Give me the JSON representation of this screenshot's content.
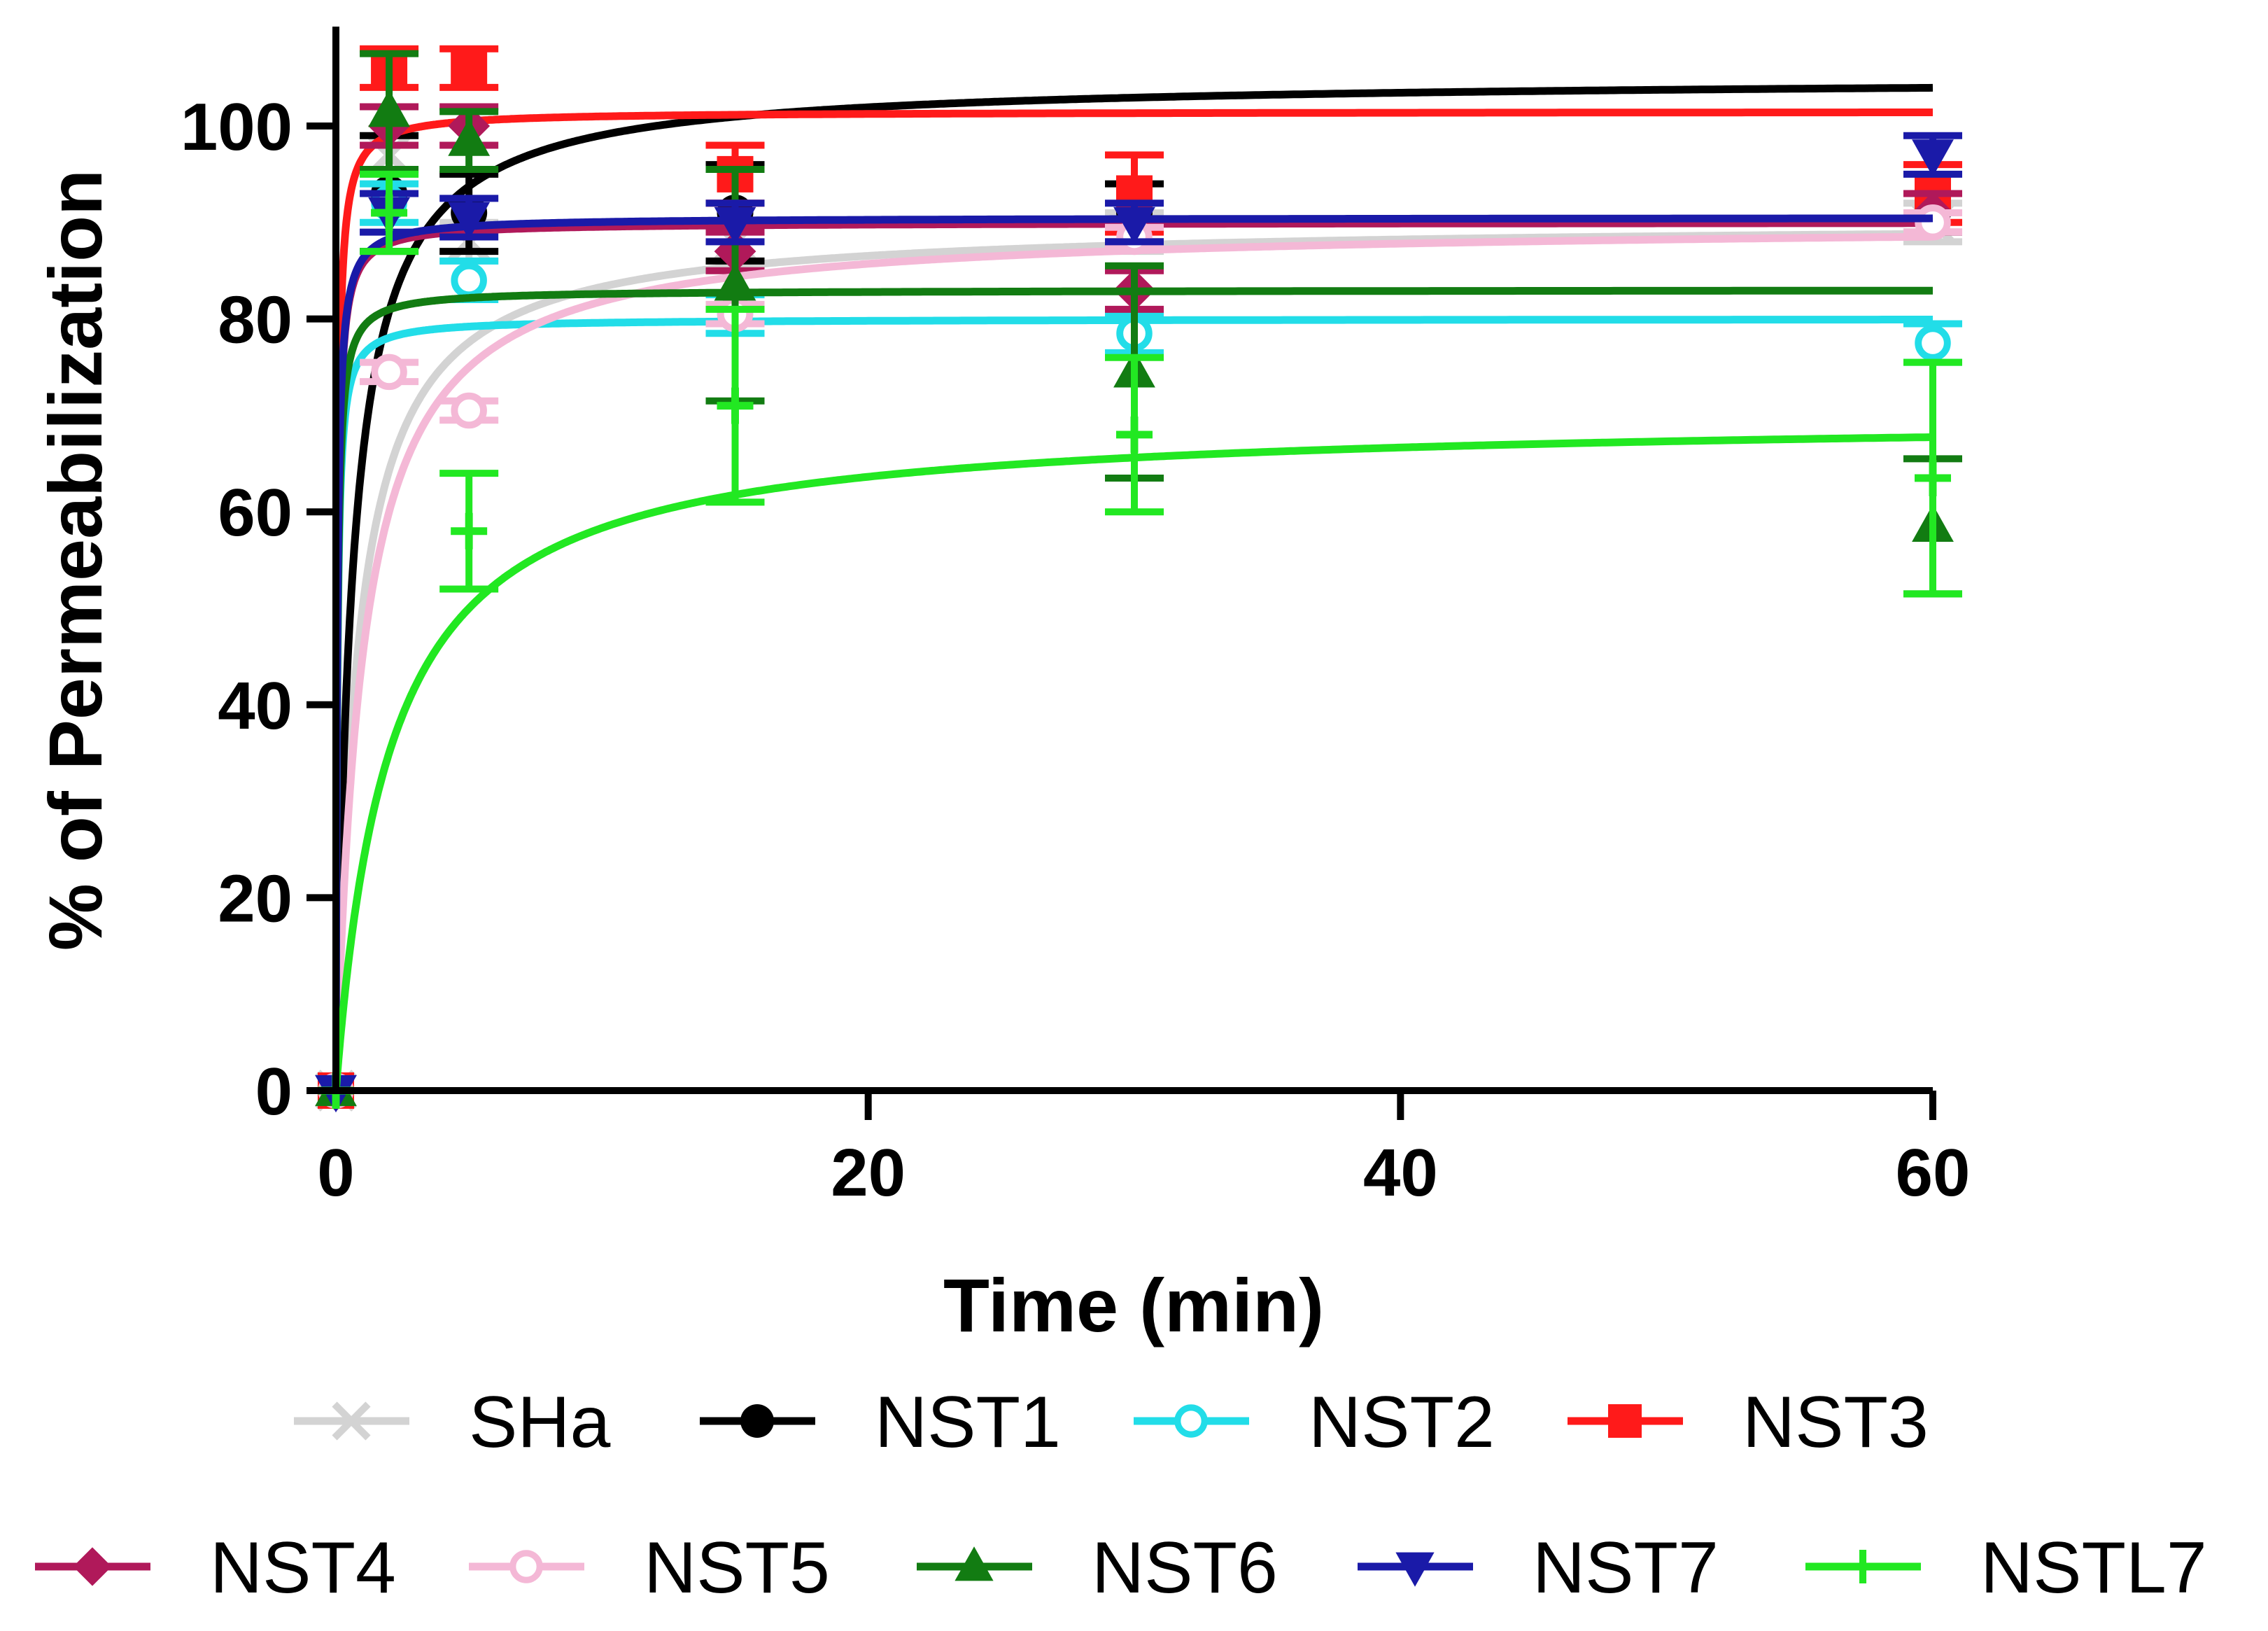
{
  "chart_data": {
    "type": "line",
    "title": "",
    "xlabel": "Time (min)",
    "ylabel": "% of Permeabilization",
    "xlim": [
      0,
      60
    ],
    "ylim": [
      0,
      110
    ],
    "xticks": [
      "0",
      "20",
      "40",
      "60"
    ],
    "yticks": [
      "0",
      "20",
      "40",
      "60",
      "80",
      "100"
    ],
    "grid": false,
    "legend_position": "bottom",
    "x": [
      0,
      2,
      5,
      15,
      30,
      60
    ],
    "series": [
      {
        "name": "SHa",
        "color": "#d3d3d3",
        "marker": "x-mark",
        "values": [
          0,
          97,
          88,
          88,
          89,
          90
        ],
        "errors": [
          0,
          2,
          2,
          2,
          2,
          2
        ],
        "fit_plateau": 90
      },
      {
        "name": "NST1",
        "color": "#000000",
        "marker": "filled-circle",
        "values": [
          0,
          93,
          91,
          91,
          91,
          91
        ],
        "errors": [
          0,
          6,
          4,
          5,
          3,
          2
        ],
        "fit_plateau": 105
      },
      {
        "name": "NST2",
        "color": "#22dde8",
        "marker": "open-circle",
        "values": [
          0,
          92,
          84,
          80.5,
          78.5,
          77.5
        ],
        "errors": [
          0,
          2,
          2,
          2,
          2,
          2
        ],
        "fit_plateau": 80
      },
      {
        "name": "NST3",
        "color": "#ff1a1a",
        "marker": "filled-square",
        "values": [
          0,
          106,
          106,
          95,
          93,
          93
        ],
        "errors": [
          0,
          2,
          2,
          3,
          4,
          3
        ],
        "fit_plateau": 101.5
      },
      {
        "name": "NST4",
        "color": "#b0195a",
        "marker": "filled-diamond",
        "values": [
          0,
          100,
          100,
          87,
          83,
          91
        ],
        "errors": [
          0,
          2,
          2,
          2,
          2,
          2
        ],
        "fit_plateau": 90
      },
      {
        "name": "NST5",
        "color": "#f4b8d6",
        "marker": "open-circle",
        "values": [
          0,
          74.5,
          70.5,
          80.5,
          88.5,
          90
        ],
        "errors": [
          0,
          1,
          1,
          1,
          1,
          1
        ],
        "fit_plateau": 90
      },
      {
        "name": "NST6",
        "color": "#127c12",
        "marker": "filled-triangle",
        "values": [
          0,
          101.5,
          98.5,
          83.5,
          74.5,
          58.5
        ],
        "errors": [
          0,
          6,
          3,
          12,
          11,
          7
        ],
        "fit_plateau": 83
      },
      {
        "name": "NST7",
        "color": "#1a1aa8",
        "marker": "filled-triangle-down",
        "values": [
          0,
          91,
          90.5,
          90,
          90,
          97
        ],
        "errors": [
          0,
          2,
          2,
          2,
          2,
          2
        ],
        "fit_plateau": 90.5
      },
      {
        "name": "NSTL7",
        "color": "#22e822",
        "marker": "plus",
        "values": [
          0,
          91,
          58,
          71,
          68,
          63.5
        ],
        "errors": [
          0,
          4,
          6,
          10,
          8,
          12
        ],
        "fit_plateau": 70
      }
    ]
  }
}
